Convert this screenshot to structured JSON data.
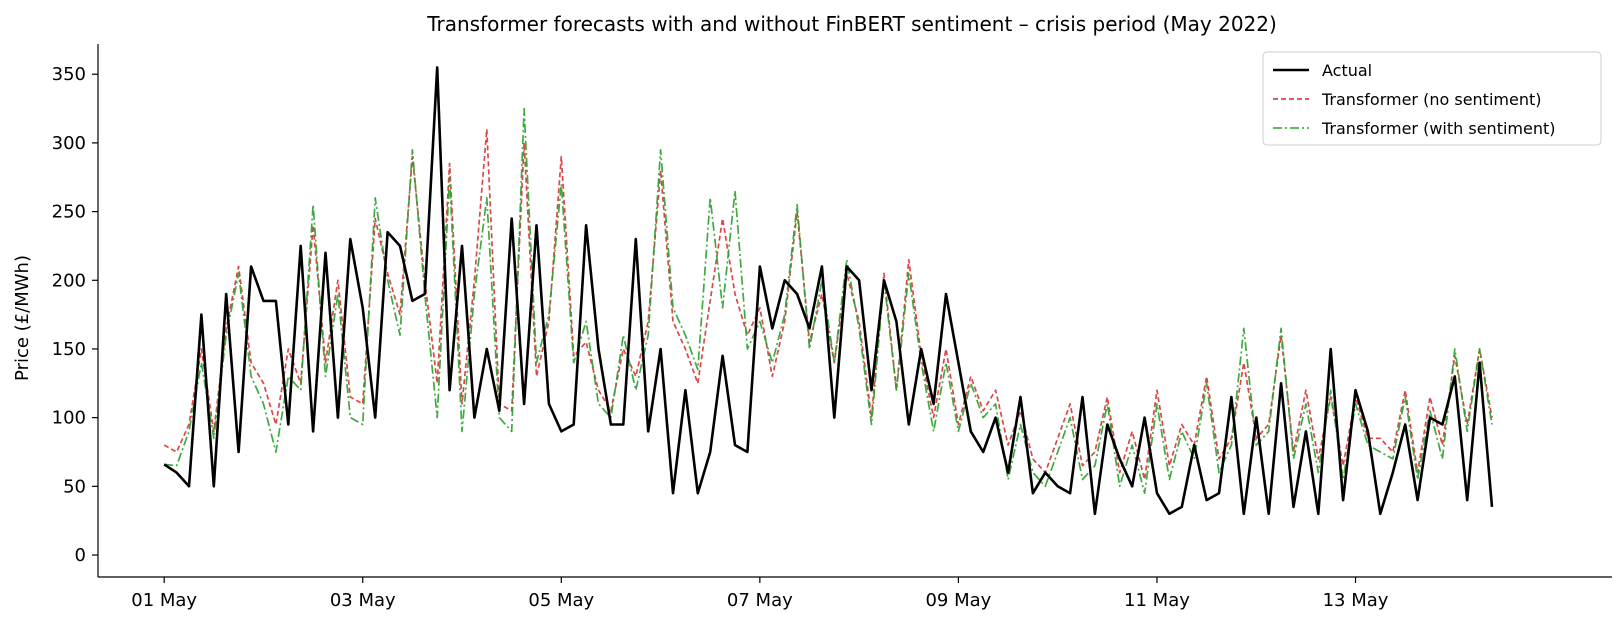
{
  "chart_data": {
    "type": "line",
    "title": "Transformer forecasts with and without FinBERT sentiment – crisis period (May 2022)",
    "xlabel": "",
    "ylabel": "Price (£/MWh)",
    "xlim": [
      "2022-04-30T08:00",
      "2022-05-15T14:00"
    ],
    "ylim": [
      -16,
      372
    ],
    "x_ticks": [
      "01 May",
      "03 May",
      "05 May",
      "07 May",
      "09 May",
      "11 May",
      "13 May"
    ],
    "x_tick_values": [
      "2022-05-01",
      "2022-05-03",
      "2022-05-05",
      "2022-05-07",
      "2022-05-09",
      "2022-05-11",
      "2022-05-13"
    ],
    "y_ticks": [
      0,
      50,
      100,
      150,
      200,
      250,
      300,
      350
    ],
    "grid": false,
    "legend_position": "top-right",
    "colors": {
      "actual": "#000000",
      "no_sentiment": "#d62728",
      "with_sentiment": "#2ca02c"
    },
    "x": [
      "2022-05-01T00:00",
      "2022-05-01T03:00",
      "2022-05-01T06:00",
      "2022-05-01T09:00",
      "2022-05-01T12:00",
      "2022-05-01T15:00",
      "2022-05-01T18:00",
      "2022-05-01T21:00",
      "2022-05-02T00:00",
      "2022-05-02T03:00",
      "2022-05-02T06:00",
      "2022-05-02T09:00",
      "2022-05-02T12:00",
      "2022-05-02T15:00",
      "2022-05-02T18:00",
      "2022-05-02T21:00",
      "2022-05-03T00:00",
      "2022-05-03T03:00",
      "2022-05-03T06:00",
      "2022-05-03T09:00",
      "2022-05-03T12:00",
      "2022-05-03T15:00",
      "2022-05-03T18:00",
      "2022-05-03T21:00",
      "2022-05-04T00:00",
      "2022-05-04T03:00",
      "2022-05-04T06:00",
      "2022-05-04T09:00",
      "2022-05-04T12:00",
      "2022-05-04T15:00",
      "2022-05-04T18:00",
      "2022-05-04T21:00",
      "2022-05-05T00:00",
      "2022-05-05T03:00",
      "2022-05-05T06:00",
      "2022-05-05T09:00",
      "2022-05-05T12:00",
      "2022-05-05T15:00",
      "2022-05-05T18:00",
      "2022-05-05T21:00",
      "2022-05-06T00:00",
      "2022-05-06T03:00",
      "2022-05-06T06:00",
      "2022-05-06T09:00",
      "2022-05-06T12:00",
      "2022-05-06T15:00",
      "2022-05-06T18:00",
      "2022-05-06T21:00",
      "2022-05-07T00:00",
      "2022-05-07T03:00",
      "2022-05-07T06:00",
      "2022-05-07T09:00",
      "2022-05-07T12:00",
      "2022-05-07T15:00",
      "2022-05-07T18:00",
      "2022-05-07T21:00",
      "2022-05-08T00:00",
      "2022-05-08T03:00",
      "2022-05-08T06:00",
      "2022-05-08T09:00",
      "2022-05-08T12:00",
      "2022-05-08T15:00",
      "2022-05-08T18:00",
      "2022-05-08T21:00",
      "2022-05-09T00:00",
      "2022-05-09T03:00",
      "2022-05-09T06:00",
      "2022-05-09T09:00",
      "2022-05-09T12:00",
      "2022-05-09T15:00",
      "2022-05-09T18:00",
      "2022-05-09T21:00",
      "2022-05-10T00:00",
      "2022-05-10T03:00",
      "2022-05-10T06:00",
      "2022-05-10T09:00",
      "2022-05-10T12:00",
      "2022-05-10T15:00",
      "2022-05-10T18:00",
      "2022-05-10T21:00",
      "2022-05-11T00:00",
      "2022-05-11T03:00",
      "2022-05-11T06:00",
      "2022-05-11T09:00",
      "2022-05-11T12:00",
      "2022-05-11T15:00",
      "2022-05-11T18:00",
      "2022-05-11T21:00",
      "2022-05-12T00:00",
      "2022-05-12T03:00",
      "2022-05-12T06:00",
      "2022-05-12T09:00",
      "2022-05-12T12:00",
      "2022-05-12T15:00",
      "2022-05-12T18:00",
      "2022-05-12T21:00",
      "2022-05-13T00:00",
      "2022-05-13T03:00",
      "2022-05-13T06:00",
      "2022-05-13T09:00",
      "2022-05-13T12:00",
      "2022-05-13T15:00",
      "2022-05-13T18:00",
      "2022-05-13T21:00",
      "2022-05-14T00:00",
      "2022-05-14T03:00",
      "2022-05-14T06:00",
      "2022-05-14T09:00"
    ],
    "series": [
      {
        "name": "Actual",
        "values": [
          66,
          60,
          50,
          175,
          50,
          190,
          75,
          210,
          185,
          185,
          95,
          225,
          90,
          220,
          100,
          230,
          180,
          100,
          235,
          225,
          185,
          190,
          355,
          120,
          225,
          100,
          150,
          105,
          245,
          110,
          240,
          110,
          90,
          95,
          240,
          150,
          95,
          95,
          230,
          90,
          150,
          45,
          120,
          45,
          75,
          145,
          80,
          75,
          210,
          165,
          200,
          190,
          165,
          210,
          100,
          210,
          200,
          120,
          200,
          170,
          95,
          150,
          110,
          190,
          140,
          90,
          75,
          100,
          60,
          115,
          45,
          60,
          50,
          45,
          115,
          30,
          95,
          70,
          50,
          100,
          45,
          30,
          35,
          80,
          40,
          45,
          115,
          30,
          100,
          30,
          125,
          35,
          90,
          30,
          150,
          40,
          120,
          90,
          30,
          60,
          95,
          40,
          100,
          95,
          130,
          40,
          140,
          35
        ]
      },
      {
        "name": "Transformer (no sentiment)",
        "values": [
          80,
          75,
          95,
          150,
          90,
          165,
          210,
          140,
          125,
          95,
          150,
          125,
          240,
          140,
          200,
          115,
          110,
          245,
          205,
          175,
          290,
          200,
          125,
          285,
          110,
          200,
          310,
          110,
          105,
          300,
          130,
          170,
          290,
          145,
          155,
          120,
          105,
          150,
          130,
          170,
          280,
          170,
          150,
          125,
          185,
          245,
          190,
          160,
          180,
          130,
          170,
          250,
          155,
          190,
          140,
          205,
          170,
          100,
          205,
          120,
          215,
          145,
          100,
          150,
          95,
          130,
          105,
          120,
          80,
          105,
          70,
          60,
          85,
          110,
          65,
          75,
          115,
          60,
          90,
          55,
          120,
          65,
          95,
          80,
          130,
          70,
          85,
          140,
          85,
          95,
          160,
          75,
          120,
          70,
          115,
          65,
          115,
          85,
          85,
          75,
          120,
          60,
          115,
          80,
          145,
          95,
          150,
          100
        ]
      },
      {
        "name": "Transformer (with sentiment)",
        "values": [
          66,
          65,
          90,
          140,
          85,
          160,
          205,
          130,
          110,
          75,
          130,
          120,
          255,
          130,
          190,
          100,
          95,
          260,
          200,
          160,
          295,
          190,
          100,
          275,
          90,
          190,
          260,
          100,
          90,
          325,
          140,
          175,
          270,
          140,
          170,
          110,
          100,
          160,
          120,
          160,
          295,
          180,
          160,
          135,
          260,
          180,
          265,
          150,
          170,
          140,
          175,
          255,
          150,
          200,
          140,
          215,
          165,
          95,
          200,
          120,
          205,
          140,
          90,
          140,
          90,
          125,
          100,
          110,
          55,
          95,
          60,
          50,
          75,
          100,
          55,
          65,
          110,
          50,
          80,
          45,
          110,
          55,
          90,
          70,
          125,
          60,
          80,
          165,
          80,
          90,
          165,
          70,
          110,
          60,
          120,
          55,
          110,
          80,
          75,
          70,
          115,
          55,
          105,
          70,
          150,
          90,
          150,
          95
        ]
      }
    ]
  }
}
